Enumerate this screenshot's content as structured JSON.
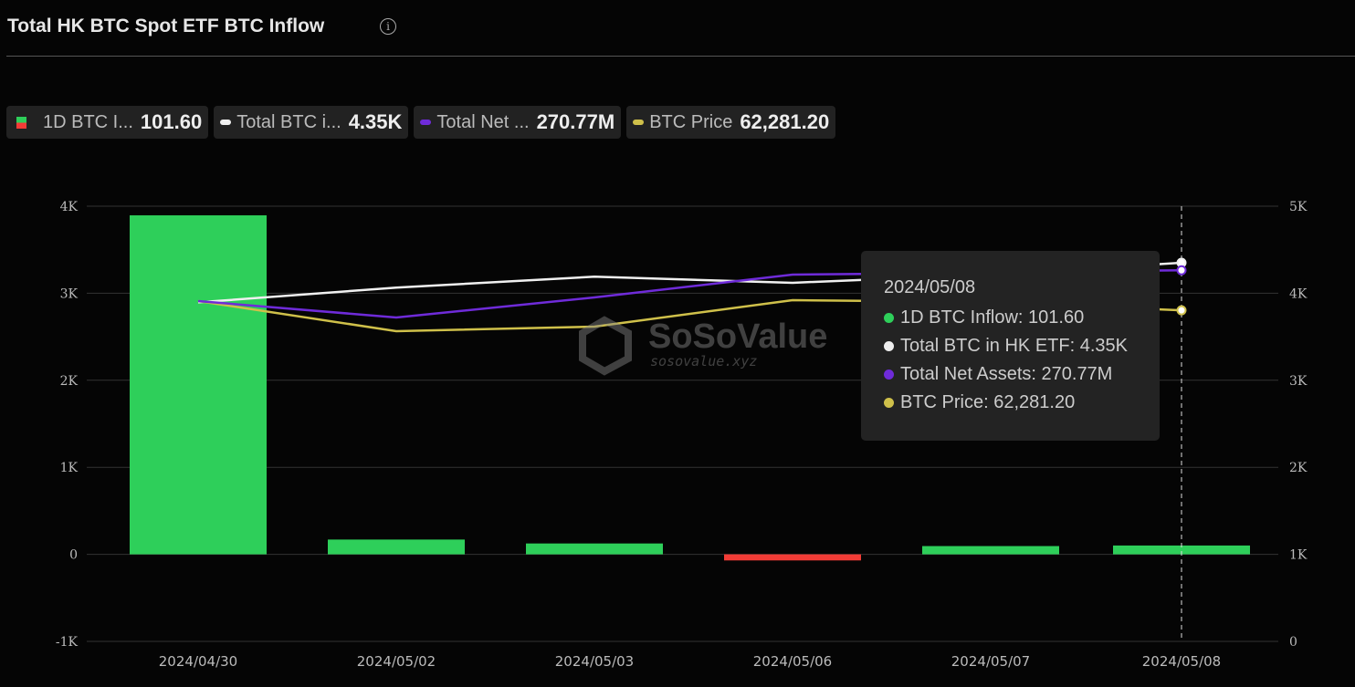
{
  "title": "Total HK BTC Spot ETF BTC Inflow",
  "legend": [
    {
      "label": "1D BTC I...",
      "value": "101.60",
      "color": "#2ecf5a"
    },
    {
      "label": "Total BTC i...",
      "value": "4.35K",
      "color": "#f0f0f0"
    },
    {
      "label": "Total Net ...",
      "value": "270.77M",
      "color": "#6f2bd9"
    },
    {
      "label": "BTC Price",
      "value": "62,281.20",
      "color": "#cfc04a"
    }
  ],
  "tooltip": {
    "date": "2024/05/08",
    "rows": [
      "1D BTC Inflow: 101.60",
      "Total BTC in HK ETF: 4.35K",
      "Total Net Assets: 270.77M",
      "BTC Price: 62,281.20"
    ]
  },
  "watermark": {
    "name": "SoSoValue",
    "url": "sosovalue.xyz"
  },
  "chart_data": {
    "type": "bar+line",
    "title": "Total HK BTC Spot ETF BTC Inflow",
    "categories": [
      "2024/04/30",
      "2024/05/02",
      "2024/05/03",
      "2024/05/06",
      "2024/05/07",
      "2024/05/08"
    ],
    "left_ticks": [
      "4K",
      "3K",
      "2K",
      "1K",
      "0",
      "-1K"
    ],
    "right_ticks": [
      "5K",
      "4K",
      "3K",
      "2K",
      "1K",
      "0"
    ],
    "ylim_left": [
      -1000,
      4000
    ],
    "ylim_right": [
      0,
      5000
    ],
    "grid": true,
    "colors": {
      "positive": "#2ecf5a",
      "negative": "#f23c36"
    },
    "series": [
      {
        "name": "1D BTC Inflow",
        "type": "bar",
        "axis": "left",
        "values": [
          3895,
          170,
          125,
          -70,
          95,
          101.6
        ]
      },
      {
        "name": "Total BTC in HK ETF",
        "type": "line",
        "axis": "right",
        "color": "#f0f0f0",
        "values": [
          3895,
          4065,
          4190,
          4120,
          4215,
          4350
        ]
      },
      {
        "name": "Total Net Assets",
        "type": "line",
        "axis": "hidden",
        "unit": "M",
        "color": "#6f2bd9",
        "values": [
          237,
          219,
          241,
          266,
          268,
          270.77
        ]
      },
      {
        "name": "BTC Price",
        "type": "line",
        "axis": "hidden",
        "color": "#cfc04a",
        "values": [
          63800,
          58850,
          59600,
          63950,
          63650,
          62281.2
        ]
      }
    ],
    "highlighted": "2024/05/08"
  }
}
